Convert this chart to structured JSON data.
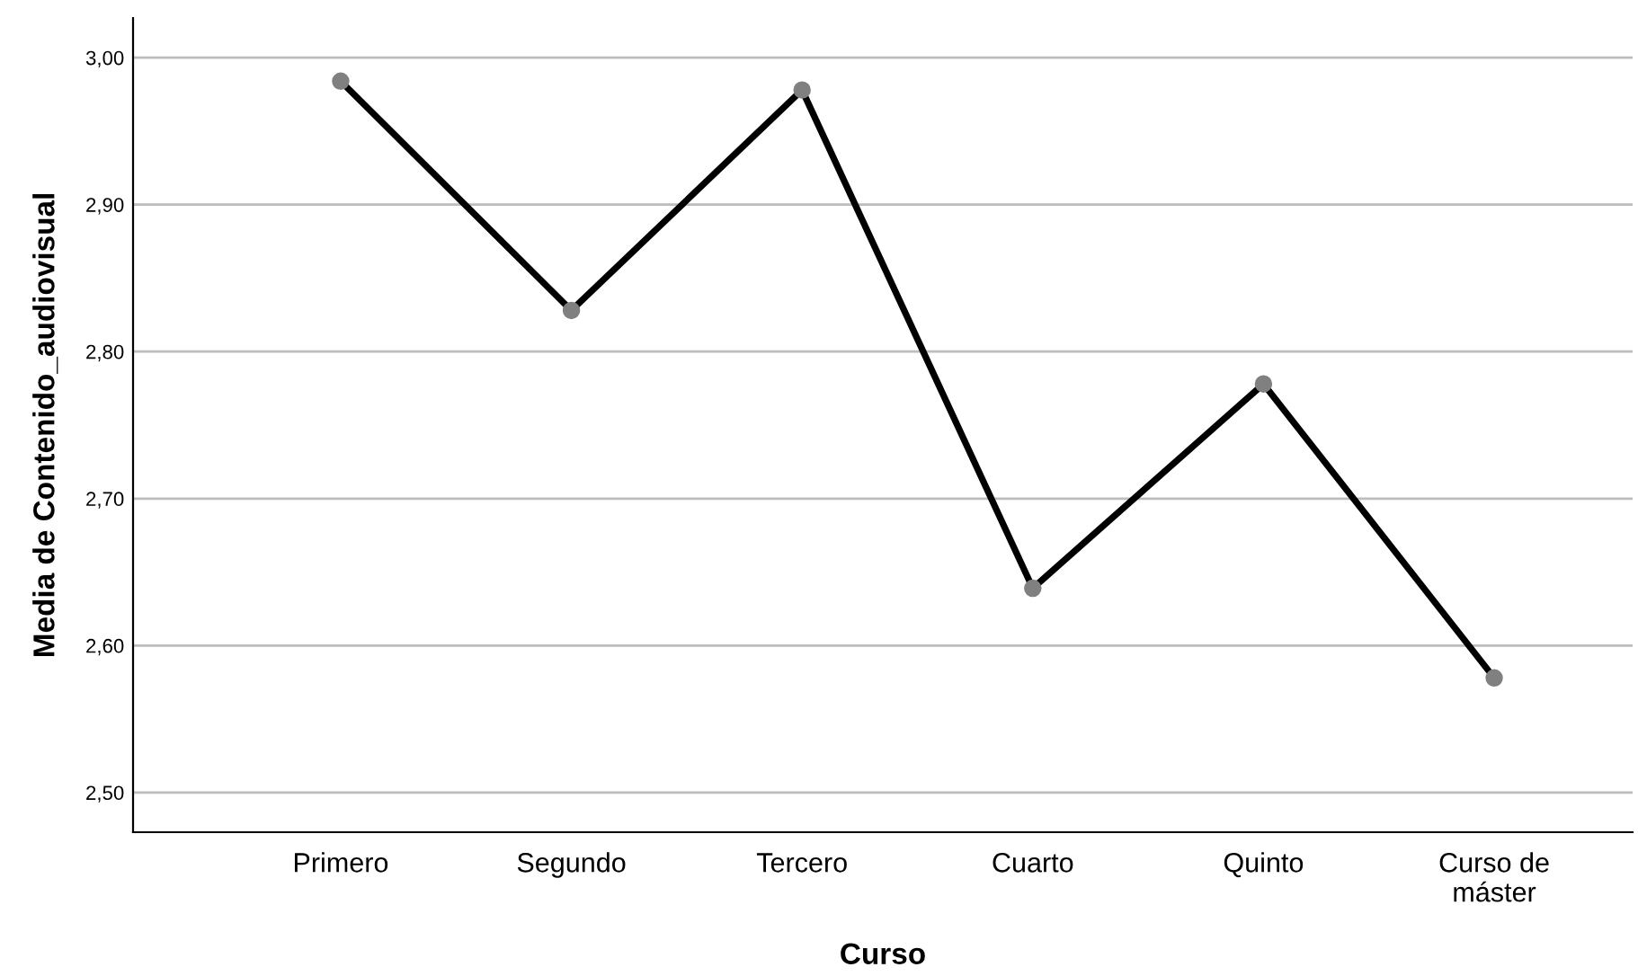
{
  "chart_data": {
    "type": "line",
    "xlabel": "Curso",
    "ylabel": "Media de Contenido_audiovisual",
    "categories": [
      "Primero",
      "Segundo",
      "Tercero",
      "Cuarto",
      "Quinto",
      "Curso de\nmáster"
    ],
    "series": [
      {
        "color": "#000000",
        "values": [
          2.984,
          2.828,
          2.978,
          2.639,
          2.778,
          2.578
        ]
      }
    ],
    "ylim": [
      2.473,
      3.027
    ],
    "yticks": [
      {
        "value": 2.5,
        "label": "2,50"
      },
      {
        "value": 2.6,
        "label": "2,60"
      },
      {
        "value": 2.7,
        "label": "2,70"
      },
      {
        "value": 2.8,
        "label": "2,80"
      },
      {
        "value": 2.9,
        "label": "2,90"
      },
      {
        "value": 3.0,
        "label": "3,00"
      }
    ],
    "grid": "y",
    "marker": "circle",
    "line_style": "solid",
    "legend": false
  }
}
